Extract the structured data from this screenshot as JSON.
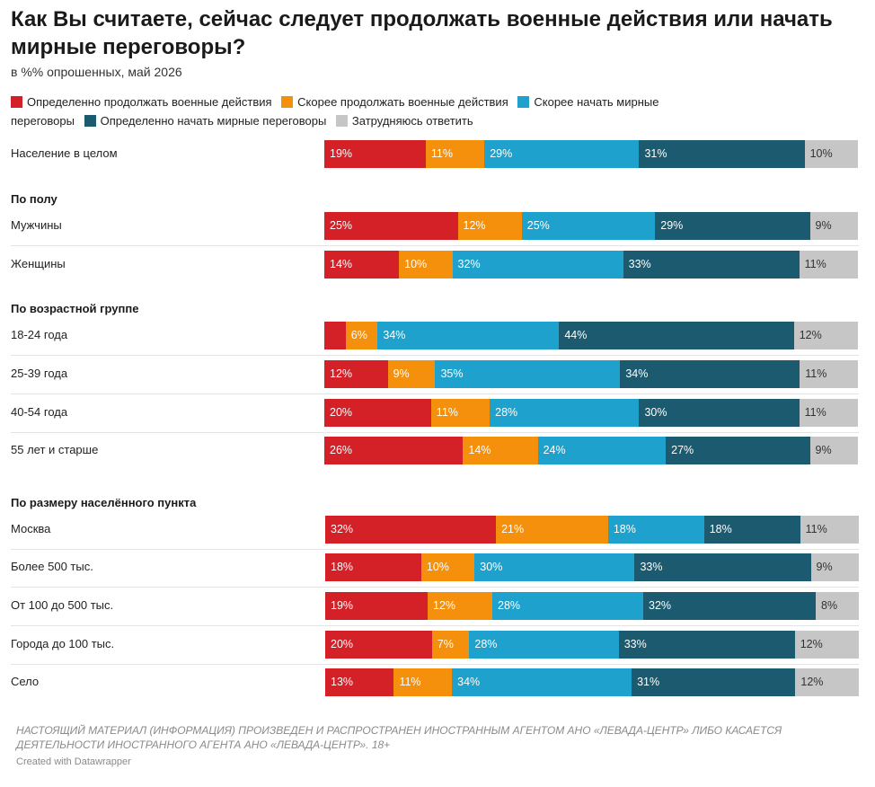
{
  "chart_data": {
    "type": "bar",
    "orientation": "horizontal-stacked-100",
    "title": "Как Вы считаете, сейчас следует продолжать военные действия или начать мирные переговоры?",
    "subtitle": "в %% опрошенных, май 2026",
    "legend_position": "top",
    "series": [
      {
        "name": "Определенно продолжать военные действия",
        "color": "#d42027"
      },
      {
        "name": "Скорее продолжать военные действия",
        "color": "#f5900d"
      },
      {
        "name": "Скорее начать мирные переговоры",
        "color": "#1ea1cc"
      },
      {
        "name": "Определенно начать мирные переговоры",
        "color": "#1c5a70"
      },
      {
        "name": "Затрудняюсь ответить",
        "color": "#c6c6c6"
      }
    ],
    "groups": [
      {
        "header": "",
        "rows": [
          {
            "label": "Население в целом",
            "values": [
              19,
              11,
              29,
              31,
              10
            ],
            "labels": [
              "19%",
              "11%",
              "29%",
              "31%",
              "10%"
            ]
          }
        ]
      },
      {
        "header": "По полу",
        "rows": [
          {
            "label": "Мужчины",
            "values": [
              25,
              12,
              25,
              29,
              9
            ],
            "labels": [
              "25%",
              "12%",
              "25%",
              "29%",
              "9%"
            ]
          },
          {
            "label": "Женщины",
            "values": [
              14,
              10,
              32,
              33,
              11
            ],
            "labels": [
              "14%",
              "10%",
              "32%",
              "33%",
              "11%"
            ]
          }
        ]
      },
      {
        "header": "По возрастной группе",
        "rows": [
          {
            "label": "18-24 года",
            "values": [
              4,
              6,
              34,
              44,
              12
            ],
            "labels": [
              "",
              "6%",
              "34%",
              "44%",
              "12%"
            ]
          },
          {
            "label": "25-39 года",
            "values": [
              12,
              9,
              35,
              34,
              11
            ],
            "labels": [
              "12%",
              "9%",
              "35%",
              "34%",
              "11%"
            ]
          },
          {
            "label": "40-54 года",
            "values": [
              20,
              11,
              28,
              30,
              11
            ],
            "labels": [
              "20%",
              "11%",
              "28%",
              "30%",
              "11%"
            ]
          },
          {
            "label": "55 лет и старше",
            "values": [
              26,
              14,
              24,
              27,
              9
            ],
            "labels": [
              "26%",
              "14%",
              "24%",
              "27%",
              "9%"
            ]
          }
        ]
      },
      {
        "header": "По размеру населённого пункта",
        "rows": [
          {
            "label": "Москва",
            "values": [
              32,
              21,
              18,
              18,
              11
            ],
            "labels": [
              "32%",
              "21%",
              "18%",
              "18%",
              "11%"
            ]
          },
          {
            "label": "Более 500 тыс.",
            "values": [
              18,
              10,
              30,
              33,
              9
            ],
            "labels": [
              "18%",
              "10%",
              "30%",
              "33%",
              "9%"
            ]
          },
          {
            "label": "От 100 до 500 тыс.",
            "values": [
              19,
              12,
              28,
              32,
              8
            ],
            "labels": [
              "19%",
              "12%",
              "28%",
              "32%",
              "8%"
            ]
          },
          {
            "label": "Города до 100 тыс.",
            "values": [
              20,
              7,
              28,
              33,
              12
            ],
            "labels": [
              "20%",
              "7%",
              "28%",
              "33%",
              "12%"
            ]
          },
          {
            "label": "Село",
            "values": [
              13,
              11,
              34,
              31,
              12
            ],
            "labels": [
              "13%",
              "11%",
              "34%",
              "31%",
              "12%"
            ]
          }
        ]
      }
    ]
  },
  "footer": {
    "note": "НАСТОЯЩИЙ МАТЕРИАЛ (ИНФОРМАЦИЯ) ПРОИЗВЕДЕН И РАСПРОСТРАНЕН ИНОСТРАННЫМ АГЕНТОМ АНО «ЛЕВАДА-ЦЕНТР» ЛИБО КАСАЕТСЯ ДЕЯТЕЛЬНОСТИ ИНОСТРАННОГО АГЕНТА АНО «ЛЕВАДА-ЦЕНТР». 18+",
    "credit": "Created with Datawrapper"
  }
}
